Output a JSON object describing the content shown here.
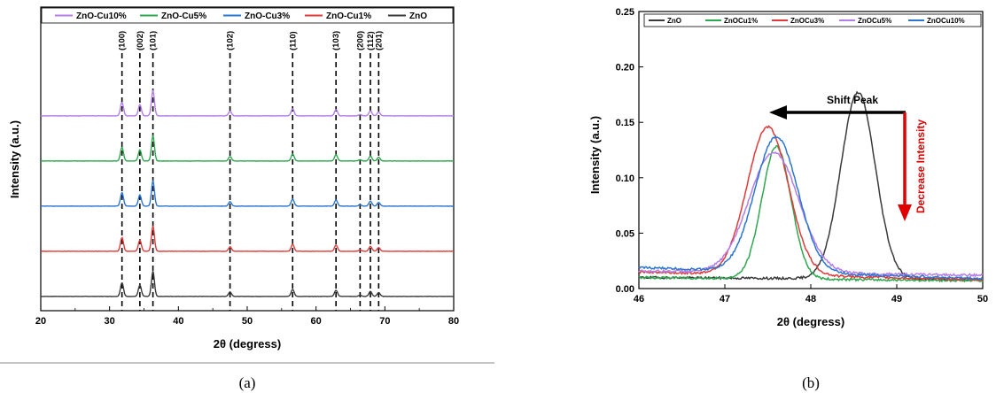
{
  "chart_data": [
    {
      "type": "line",
      "caption": "(a)",
      "xlabel": "2θ (degress)",
      "ylabel": "Intensity (a.u.)",
      "xlim": [
        20,
        80
      ],
      "xticks": [
        "20",
        "30",
        "40",
        "50",
        "60",
        "70",
        "80"
      ],
      "legend_placement": "top",
      "series": [
        {
          "name": "ZnO-Cu10%",
          "color": "#b47de8",
          "offset": 4
        },
        {
          "name": "ZnO-Cu5%",
          "color": "#2ea84f",
          "offset": 3
        },
        {
          "name": "ZnO-Cu3%",
          "color": "#2a76d2",
          "offset": 2
        },
        {
          "name": "ZnO-Cu1%",
          "color": "#e03a3a",
          "offset": 1
        },
        {
          "name": "ZnO",
          "color": "#3a3a3a",
          "offset": 0
        }
      ],
      "peaks": [
        {
          "hkl": "(100)",
          "x": 31.8,
          "intensity": 0.55
        },
        {
          "hkl": "(002)",
          "x": 34.4,
          "intensity": 0.45
        },
        {
          "hkl": "(101)",
          "x": 36.3,
          "intensity": 1.0
        },
        {
          "hkl": "(102)",
          "x": 47.5,
          "intensity": 0.18
        },
        {
          "hkl": "(110)",
          "x": 56.6,
          "intensity": 0.28
        },
        {
          "hkl": "(103)",
          "x": 62.9,
          "intensity": 0.25
        },
        {
          "hkl": "(200)",
          "x": 66.4,
          "intensity": 0.05
        },
        {
          "hkl": "(112)",
          "x": 67.9,
          "intensity": 0.2
        },
        {
          "hkl": "(201)",
          "x": 69.1,
          "intensity": 0.15
        }
      ]
    },
    {
      "type": "line",
      "caption": "(b)",
      "xlabel": "2θ (degress)",
      "ylabel": "Intensity (a.u.)",
      "xlim": [
        46,
        50
      ],
      "ylim": [
        0,
        0.25
      ],
      "xticks": [
        "46",
        "47",
        "48",
        "49",
        "50"
      ],
      "yticks": [
        "0.00",
        "0.05",
        "0.10",
        "0.15",
        "0.20",
        "0.25"
      ],
      "legend_placement": "top",
      "series": [
        {
          "name": "ZnO",
          "color": "#3a3a3a",
          "center": 48.55,
          "peak": 0.177,
          "width": 0.2,
          "base_left": 0.01,
          "base_right": 0.008
        },
        {
          "name": "ZnOCu1%",
          "color": "#2ea84f",
          "center": 47.6,
          "peak": 0.128,
          "width": 0.17,
          "base_left": 0.01,
          "base_right": 0.007
        },
        {
          "name": "ZnOCu3%",
          "color": "#e03a3a",
          "center": 47.5,
          "peak": 0.146,
          "width": 0.24,
          "base_left": 0.015,
          "base_right": 0.008
        },
        {
          "name": "ZnOCu5%",
          "color": "#b47de8",
          "center": 47.57,
          "peak": 0.123,
          "width": 0.29,
          "base_left": 0.016,
          "base_right": 0.012
        },
        {
          "name": "ZnOCu10%",
          "color": "#2a76d2",
          "center": 47.6,
          "peak": 0.137,
          "width": 0.25,
          "base_left": 0.019,
          "base_right": 0.009
        }
      ],
      "annotations": [
        {
          "text": "Shift Peak",
          "color": "#000000"
        },
        {
          "text": "Decrease Intensity",
          "color": "#e00000"
        }
      ]
    }
  ]
}
